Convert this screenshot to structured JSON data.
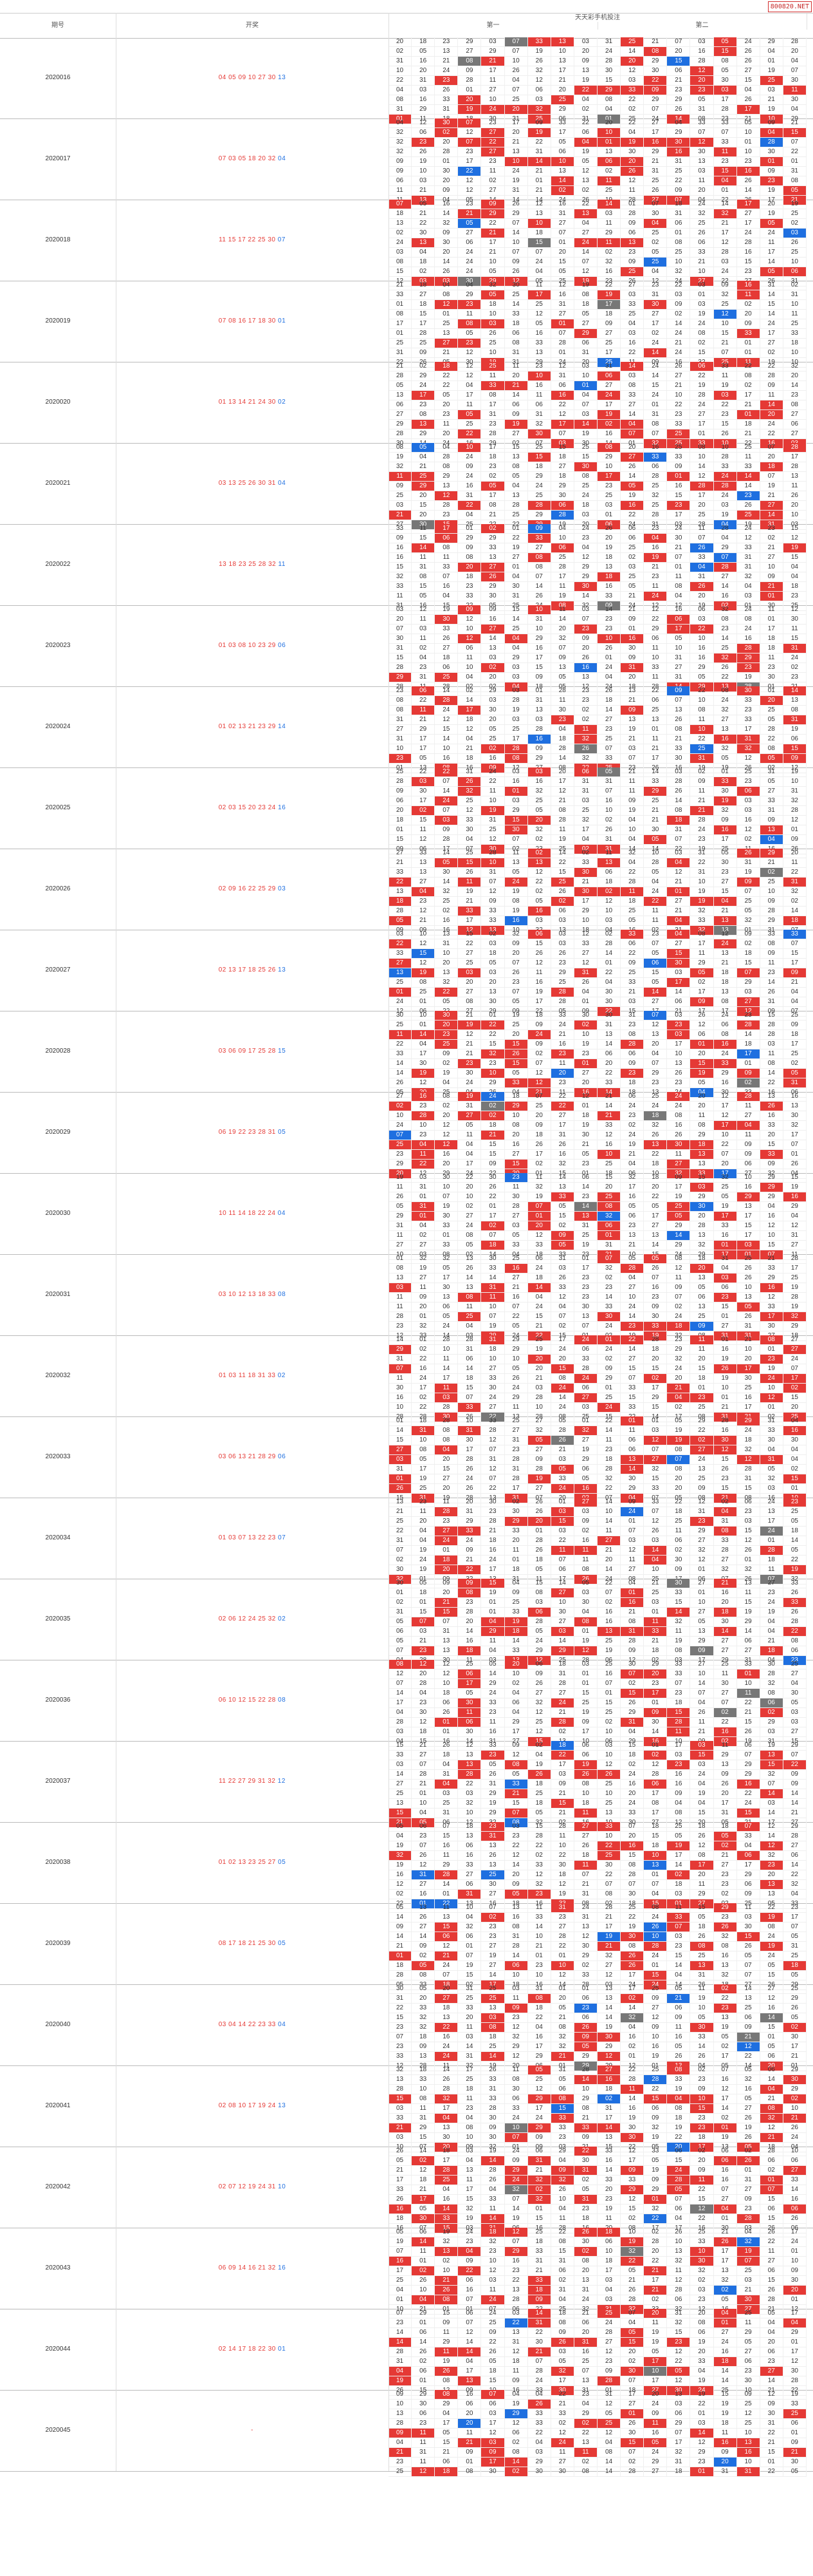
{
  "brand": "800820.NET",
  "header": {
    "col_issue": "期号",
    "col_numbers": "开奖",
    "title": "天天彩手机投注",
    "group1": "第一",
    "group2": "第二"
  },
  "colors": {
    "red": "#e53935",
    "blue": "#1e6fe0",
    "gray": "#777777"
  },
  "chart_data": {
    "type": "table",
    "draws": [
      {
        "issue": "2020016",
        "red": "04 05 09 10 27 30",
        "blue": "13"
      },
      {
        "issue": "2020017",
        "red": "07 03 05 18 20 32",
        "blue": "04"
      },
      {
        "issue": "2020018",
        "red": "11 15 17 22 25 30",
        "blue": "07"
      },
      {
        "issue": "2020019",
        "red": "07 08 16 17 18 30",
        "blue": "01"
      },
      {
        "issue": "2020020",
        "red": "01 13 14 21 24 30",
        "blue": "02"
      },
      {
        "issue": "2020021",
        "red": "03 13 25 26 30 31",
        "blue": "04"
      },
      {
        "issue": "2020022",
        "red": "13 18 23 25 28 32",
        "blue": "11"
      },
      {
        "issue": "2020023",
        "red": "01 03 08 10 23 29",
        "blue": "06"
      },
      {
        "issue": "2020024",
        "red": "01 02 13 21 23 29",
        "blue": "14"
      },
      {
        "issue": "2020025",
        "red": "02 03 15 20 23 24",
        "blue": "16"
      },
      {
        "issue": "2020026",
        "red": "02 09 16 22 25 29",
        "blue": "03"
      },
      {
        "issue": "2020027",
        "red": "02 13 17 18 25 26",
        "blue": "13"
      },
      {
        "issue": "2020028",
        "red": "03 06 09 17 25 28",
        "blue": "15"
      },
      {
        "issue": "2020029",
        "red": "06 19 22 23 28 31",
        "blue": "05"
      },
      {
        "issue": "2020030",
        "red": "10 11 14 18 22 24",
        "blue": "04"
      },
      {
        "issue": "2020031",
        "red": "03 10 12 13 18 33",
        "blue": "08"
      },
      {
        "issue": "2020032",
        "red": "01 03 11 18 31 33",
        "blue": "02"
      },
      {
        "issue": "2020033",
        "red": "03 06 13 21 28 29",
        "blue": "06"
      },
      {
        "issue": "2020034",
        "red": "01 03 07 13 22 23",
        "blue": "07"
      },
      {
        "issue": "2020035",
        "red": "02 06 12 24 25 32",
        "blue": "02"
      },
      {
        "issue": "2020036",
        "red": "06 10 12 15 22 28",
        "blue": "08"
      },
      {
        "issue": "2020037",
        "red": "11 22 27 29 31 32",
        "blue": "12"
      },
      {
        "issue": "2020038",
        "red": "01 02 13 23 25 27",
        "blue": "05"
      },
      {
        "issue": "2020039",
        "red": "08 17 18 21 25 30",
        "blue": "05"
      },
      {
        "issue": "2020040",
        "red": "03 04 14 22 23 33",
        "blue": "04"
      },
      {
        "issue": "2020041",
        "red": "02 08 10 17 19 24",
        "blue": "13"
      },
      {
        "issue": "2020042",
        "red": "02 07 12 19 24 31",
        "blue": "10"
      },
      {
        "issue": "2020043",
        "red": "06 09 14 16 21 32",
        "blue": "16"
      },
      {
        "issue": "2020044",
        "red": "02 14 17 18 22 30",
        "blue": "01"
      },
      {
        "issue": "2020045",
        "red": "-",
        "blue": ""
      }
    ]
  }
}
